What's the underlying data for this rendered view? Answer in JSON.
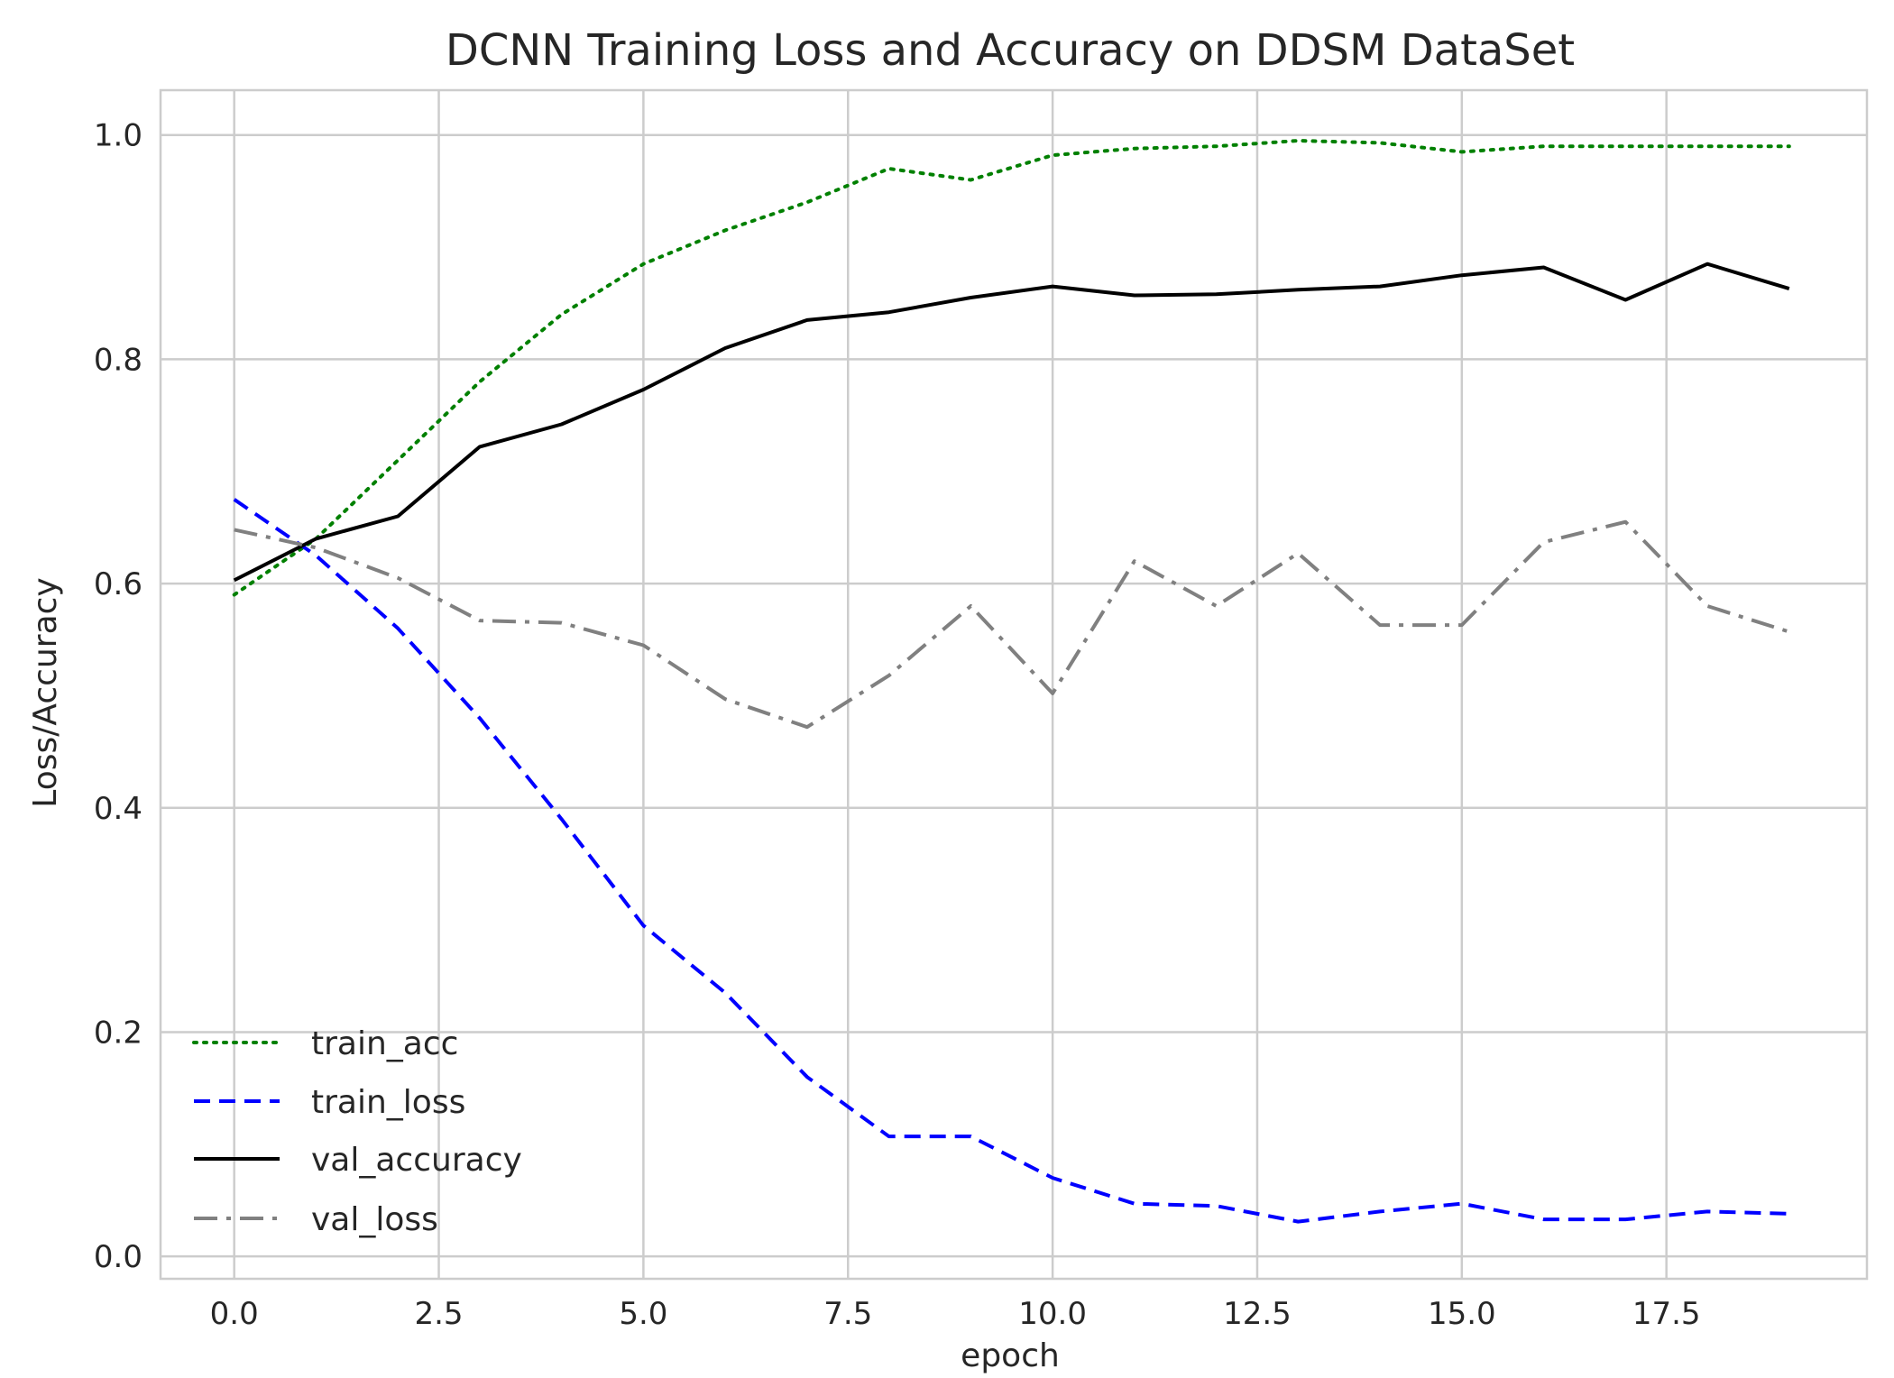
{
  "chart_data": {
    "type": "line",
    "title": "DCNN Training Loss and Accuracy on DDSM DataSet",
    "xlabel": "epoch",
    "ylabel": "Loss/Accuracy",
    "xlim": [
      -0.9,
      19.95
    ],
    "ylim": [
      -0.02,
      1.04
    ],
    "xticks": [
      0.0,
      2.5,
      5.0,
      7.5,
      10.0,
      12.5,
      15.0,
      17.5
    ],
    "xtick_labels": [
      "0.0",
      "2.5",
      "5.0",
      "7.5",
      "10.0",
      "12.5",
      "15.0",
      "17.5"
    ],
    "yticks": [
      0.0,
      0.2,
      0.4,
      0.6,
      0.8,
      1.0
    ],
    "ytick_labels": [
      "0.0",
      "0.2",
      "0.4",
      "0.6",
      "0.8",
      "1.0"
    ],
    "grid": true,
    "legend_position": "lower-left",
    "x": [
      0,
      1,
      2,
      3,
      4,
      5,
      6,
      7,
      8,
      9,
      10,
      11,
      12,
      13,
      14,
      15,
      16,
      17,
      18,
      19
    ],
    "series": [
      {
        "name": "train_acc",
        "style": "dotted",
        "color": "#008000",
        "values": [
          0.59,
          0.64,
          0.71,
          0.78,
          0.84,
          0.885,
          0.915,
          0.94,
          0.97,
          0.96,
          0.982,
          0.988,
          0.99,
          0.995,
          0.993,
          0.985,
          0.99,
          0.99,
          0.99,
          0.99
        ]
      },
      {
        "name": "train_loss",
        "style": "dashed",
        "color": "#0000ff",
        "values": [
          0.675,
          0.625,
          0.56,
          0.48,
          0.39,
          0.295,
          0.235,
          0.16,
          0.107,
          0.107,
          0.07,
          0.047,
          0.045,
          0.031,
          0.04,
          0.047,
          0.033,
          0.033,
          0.04,
          0.038
        ]
      },
      {
        "name": "val_accuracy",
        "style": "solid",
        "color": "#000000",
        "values": [
          0.603,
          0.64,
          0.66,
          0.722,
          0.742,
          0.773,
          0.81,
          0.835,
          0.842,
          0.855,
          0.865,
          0.857,
          0.858,
          0.862,
          0.865,
          0.875,
          0.882,
          0.853,
          0.885,
          0.863
        ]
      },
      {
        "name": "val_loss",
        "style": "dashdot",
        "color": "#808080",
        "values": [
          0.648,
          0.632,
          0.605,
          0.567,
          0.565,
          0.545,
          0.497,
          0.472,
          0.518,
          0.58,
          0.502,
          0.62,
          0.58,
          0.627,
          0.563,
          0.563,
          0.637,
          0.655,
          0.58,
          0.557
        ]
      }
    ]
  },
  "colors": {
    "plot_background": "#ffffff",
    "grid": "#cccccc",
    "frame": "#cccccc",
    "text": "#262626"
  }
}
